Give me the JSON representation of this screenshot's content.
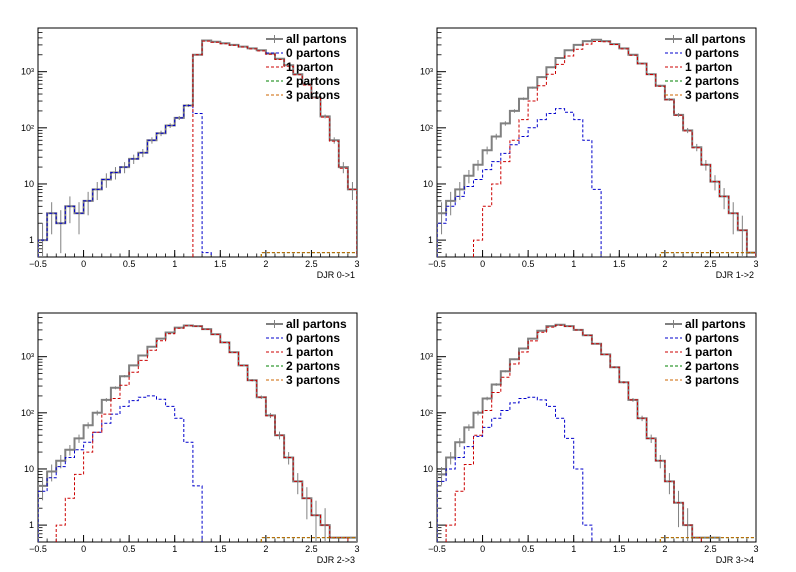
{
  "legend": [
    {
      "label": "all partons",
      "color": "#808080",
      "dash": "solid",
      "width": 2
    },
    {
      "label": "0 partons",
      "color": "#0000cc",
      "dash": "dashed",
      "width": 1
    },
    {
      "label": "1 parton",
      "color": "#cc0000",
      "dash": "dashed",
      "width": 1
    },
    {
      "label": "2 partons",
      "color": "#008000",
      "dash": "dashed",
      "width": 1
    },
    {
      "label": "3 partons",
      "color": "#cc6600",
      "dash": "dashed",
      "width": 1
    }
  ],
  "chart_data": [
    {
      "type": "line",
      "xlabel": "DJR 0->1",
      "xlim": [
        -0.5,
        3
      ],
      "ylim": [
        0.5,
        6000
      ],
      "yscale": "log",
      "x_ticks": [
        -0.5,
        0,
        0.5,
        1,
        1.5,
        2,
        2.5,
        3
      ],
      "x_tick_labels": [
        "−0.5",
        "0",
        "0.5",
        "1",
        "1.5",
        "2",
        "2.5",
        "3"
      ],
      "y_ticks": [
        1,
        10,
        100,
        1000
      ],
      "y_tick_labels": [
        "1",
        "10",
        "10²",
        "10³"
      ],
      "series": [
        {
          "name": "all partons",
          "x": [
            -0.45,
            -0.35,
            -0.25,
            -0.15,
            -0.05,
            0.05,
            0.15,
            0.25,
            0.35,
            0.45,
            0.55,
            0.65,
            0.75,
            0.85,
            0.95,
            1.05,
            1.15,
            1.25,
            1.35,
            1.45,
            1.55,
            1.65,
            1.75,
            1.85,
            1.95,
            2.05,
            2.15,
            2.25,
            2.35,
            2.45,
            2.55,
            2.65,
            2.75,
            2.85,
            2.95
          ],
          "y": [
            1,
            3,
            2,
            4,
            3,
            5,
            8,
            12,
            16,
            20,
            28,
            36,
            60,
            80,
            110,
            150,
            250,
            2000,
            3600,
            3400,
            3200,
            3000,
            2800,
            2600,
            2400,
            2100,
            1700,
            1300,
            900,
            600,
            350,
            160,
            60,
            20,
            8
          ]
        },
        {
          "name": "0 partons",
          "x": [
            -0.45,
            -0.35,
            -0.25,
            -0.15,
            -0.05,
            0.05,
            0.15,
            0.25,
            0.35,
            0.45,
            0.55,
            0.65,
            0.75,
            0.85,
            0.95,
            1.05,
            1.15,
            1.25,
            1.35
          ],
          "y": [
            1,
            3,
            2,
            4,
            3,
            5,
            8,
            12,
            16,
            20,
            28,
            36,
            60,
            80,
            110,
            150,
            250,
            180,
            0.6
          ]
        },
        {
          "name": "1 parton",
          "x": [
            1.25,
            1.35,
            1.45,
            1.55,
            1.65,
            1.75,
            1.85,
            1.95,
            2.05,
            2.15,
            2.25,
            2.35,
            2.45,
            2.55,
            2.65,
            2.75,
            2.85,
            2.95
          ],
          "y": [
            2000,
            3500,
            3350,
            3150,
            2950,
            2750,
            2550,
            2350,
            2050,
            1650,
            1250,
            880,
            580,
            340,
            155,
            58,
            19,
            8
          ]
        },
        {
          "name": "2 partons",
          "x": [
            2.0,
            3.0
          ],
          "y": [
            0.6,
            0.6
          ]
        },
        {
          "name": "3 partons",
          "x": [
            2.0,
            3.0
          ],
          "y": [
            0.6,
            0.6
          ]
        }
      ]
    },
    {
      "type": "line",
      "xlabel": "DJR 1->2",
      "xlim": [
        -0.5,
        3
      ],
      "ylim": [
        0.5,
        6000
      ],
      "yscale": "log",
      "x_ticks": [
        -0.5,
        0,
        0.5,
        1,
        1.5,
        2,
        2.5,
        3
      ],
      "x_tick_labels": [
        "−0.5",
        "0",
        "0.5",
        "1",
        "1.5",
        "2",
        "2.5",
        "3"
      ],
      "y_ticks": [
        1,
        10,
        100,
        1000
      ],
      "y_tick_labels": [
        "1",
        "10",
        "10²",
        "10³"
      ],
      "series": [
        {
          "name": "all partons",
          "x": [
            -0.45,
            -0.35,
            -0.25,
            -0.15,
            -0.05,
            0.05,
            0.15,
            0.25,
            0.35,
            0.45,
            0.55,
            0.65,
            0.75,
            0.85,
            0.95,
            1.05,
            1.15,
            1.25,
            1.35,
            1.45,
            1.55,
            1.65,
            1.75,
            1.85,
            1.95,
            2.05,
            2.15,
            2.25,
            2.35,
            2.45,
            2.55,
            2.65,
            2.75,
            2.85,
            2.95
          ],
          "y": [
            3,
            5,
            8,
            14,
            22,
            40,
            70,
            120,
            200,
            330,
            520,
            800,
            1200,
            1750,
            2400,
            3000,
            3500,
            3700,
            3500,
            3100,
            2600,
            2000,
            1400,
            900,
            560,
            320,
            170,
            90,
            45,
            22,
            11,
            6,
            3,
            1.5,
            0.6
          ]
        },
        {
          "name": "0 partons",
          "x": [
            -0.45,
            -0.35,
            -0.25,
            -0.15,
            -0.05,
            0.05,
            0.15,
            0.25,
            0.35,
            0.45,
            0.55,
            0.65,
            0.75,
            0.85,
            0.95,
            1.05,
            1.15,
            1.25
          ],
          "y": [
            2,
            4,
            6,
            9,
            12,
            18,
            25,
            35,
            50,
            70,
            100,
            140,
            180,
            220,
            190,
            140,
            60,
            8
          ]
        },
        {
          "name": "1 parton",
          "x": [
            -0.05,
            0.05,
            0.15,
            0.25,
            0.35,
            0.45,
            0.55,
            0.65,
            0.75,
            0.85,
            0.95,
            1.05,
            1.15,
            1.25,
            1.35,
            1.45,
            1.55,
            1.65,
            1.75,
            1.85,
            1.95,
            2.05,
            2.15,
            2.25,
            2.35,
            2.45,
            2.55,
            2.65,
            2.75,
            2.85,
            2.95
          ],
          "y": [
            1,
            4,
            10,
            25,
            60,
            140,
            300,
            560,
            900,
            1350,
            1900,
            2500,
            3100,
            3450,
            3400,
            3050,
            2550,
            1970,
            1380,
            890,
            550,
            315,
            168,
            88,
            44,
            22,
            11,
            6,
            3,
            1.5,
            0.6
          ]
        },
        {
          "name": "2 partons",
          "x": [
            2.0,
            3.0
          ],
          "y": [
            0.6,
            0.6
          ]
        },
        {
          "name": "3 partons",
          "x": [
            2.0,
            3.0
          ],
          "y": [
            0.6,
            0.6
          ]
        }
      ]
    },
    {
      "type": "line",
      "xlabel": "DJR 2->3",
      "xlim": [
        -0.5,
        3
      ],
      "ylim": [
        0.5,
        6000
      ],
      "yscale": "log",
      "x_ticks": [
        -0.5,
        0,
        0.5,
        1,
        1.5,
        2,
        2.5,
        3
      ],
      "x_tick_labels": [
        "−0.5",
        "0",
        "0.5",
        "1",
        "1.5",
        "2",
        "2.5",
        "3"
      ],
      "y_ticks": [
        1,
        10,
        100,
        1000
      ],
      "y_tick_labels": [
        "1",
        "10",
        "10²",
        "10³"
      ],
      "series": [
        {
          "name": "all partons",
          "x": [
            -0.45,
            -0.35,
            -0.25,
            -0.15,
            -0.05,
            0.05,
            0.15,
            0.25,
            0.35,
            0.45,
            0.55,
            0.65,
            0.75,
            0.85,
            0.95,
            1.05,
            1.15,
            1.25,
            1.35,
            1.45,
            1.55,
            1.65,
            1.75,
            1.85,
            1.95,
            2.05,
            2.15,
            2.25,
            2.35,
            2.45,
            2.55,
            2.65,
            2.75,
            2.85,
            2.95
          ],
          "y": [
            5,
            9,
            14,
            22,
            35,
            60,
            100,
            170,
            280,
            450,
            700,
            1050,
            1500,
            2100,
            2700,
            3300,
            3600,
            3500,
            3100,
            2500,
            1800,
            1200,
            700,
            380,
            190,
            90,
            40,
            16,
            6,
            3,
            1.5,
            1,
            0.6,
            0.6,
            0.6
          ]
        },
        {
          "name": "0 partons",
          "x": [
            -0.45,
            -0.35,
            -0.25,
            -0.15,
            -0.05,
            0.05,
            0.15,
            0.25,
            0.35,
            0.45,
            0.55,
            0.65,
            0.75,
            0.85,
            0.95,
            1.05,
            1.15,
            1.25
          ],
          "y": [
            4,
            7,
            11,
            16,
            22,
            30,
            45,
            65,
            95,
            130,
            165,
            190,
            200,
            175,
            130,
            80,
            30,
            5
          ]
        },
        {
          "name": "1 parton",
          "x": [
            -0.25,
            -0.15,
            -0.05,
            0.05,
            0.15,
            0.25,
            0.35,
            0.45,
            0.55,
            0.65,
            0.75,
            0.85,
            0.95,
            1.05,
            1.15,
            1.25,
            1.35,
            1.45,
            1.55,
            1.65,
            1.75,
            1.85,
            1.95,
            2.05,
            2.15,
            2.25,
            2.35,
            2.45,
            2.55,
            2.65,
            2.75,
            2.85
          ],
          "y": [
            1,
            3,
            8,
            20,
            45,
            95,
            180,
            310,
            530,
            860,
            1300,
            1920,
            2560,
            3200,
            3560,
            3480,
            3080,
            2490,
            1790,
            1190,
            695,
            378,
            189,
            89,
            40,
            16,
            6,
            3,
            1.5,
            1,
            0.6,
            0.6
          ]
        },
        {
          "name": "2 partons",
          "x": [
            2.0,
            3.0
          ],
          "y": [
            0.6,
            0.6
          ]
        },
        {
          "name": "3 partons",
          "x": [
            2.0,
            3.0
          ],
          "y": [
            0.6,
            0.6
          ]
        }
      ]
    },
    {
      "type": "line",
      "xlabel": "DJR 3->4",
      "xlim": [
        -0.5,
        3
      ],
      "ylim": [
        0.5,
        6000
      ],
      "yscale": "log",
      "x_ticks": [
        -0.5,
        0,
        0.5,
        1,
        1.5,
        2,
        2.5,
        3
      ],
      "x_tick_labels": [
        "−0.5",
        "0",
        "0.5",
        "1",
        "1.5",
        "2",
        "2.5",
        "3"
      ],
      "y_ticks": [
        1,
        10,
        100,
        1000
      ],
      "y_tick_labels": [
        "1",
        "10",
        "10²",
        "10³"
      ],
      "series": [
        {
          "name": "all partons",
          "x": [
            -0.45,
            -0.35,
            -0.25,
            -0.15,
            -0.05,
            0.05,
            0.15,
            0.25,
            0.35,
            0.45,
            0.55,
            0.65,
            0.75,
            0.85,
            0.95,
            1.05,
            1.15,
            1.25,
            1.35,
            1.45,
            1.55,
            1.65,
            1.75,
            1.85,
            1.95,
            2.05,
            2.15,
            2.25,
            2.35,
            2.45,
            2.55
          ],
          "y": [
            8,
            16,
            30,
            55,
            100,
            180,
            320,
            550,
            900,
            1400,
            2100,
            2900,
            3500,
            3700,
            3500,
            3000,
            2400,
            1700,
            1100,
            650,
            350,
            170,
            80,
            35,
            14,
            6,
            2.5,
            1,
            0.6,
            0.6,
            0.6
          ]
        },
        {
          "name": "0 partons",
          "x": [
            -0.45,
            -0.35,
            -0.25,
            -0.15,
            -0.05,
            0.05,
            0.15,
            0.25,
            0.35,
            0.45,
            0.55,
            0.65,
            0.75,
            0.85,
            0.95,
            1.05,
            1.15
          ],
          "y": [
            6,
            10,
            16,
            25,
            38,
            55,
            80,
            110,
            150,
            180,
            190,
            170,
            130,
            80,
            35,
            10,
            1
          ]
        },
        {
          "name": "1 parton",
          "x": [
            -0.35,
            -0.25,
            -0.15,
            -0.05,
            0.05,
            0.15,
            0.25,
            0.35,
            0.45,
            0.55,
            0.65,
            0.75,
            0.85,
            0.95,
            1.05,
            1.15,
            1.25,
            1.35,
            1.45,
            1.55,
            1.65,
            1.75,
            1.85,
            1.95,
            2.05,
            2.15,
            2.25,
            2.35
          ],
          "y": [
            1,
            4,
            12,
            40,
            110,
            230,
            430,
            740,
            1210,
            1910,
            2730,
            3370,
            3620,
            3470,
            2990,
            2390,
            1700,
            1100,
            650,
            350,
            170,
            80,
            35,
            14,
            6,
            2.5,
            1,
            0.6
          ]
        },
        {
          "name": "2 partons",
          "x": [
            2.0,
            3.0
          ],
          "y": [
            0.6,
            0.6
          ]
        },
        {
          "name": "3 partons",
          "x": [
            2.0,
            3.0
          ],
          "y": [
            0.6,
            0.6
          ]
        }
      ]
    }
  ]
}
